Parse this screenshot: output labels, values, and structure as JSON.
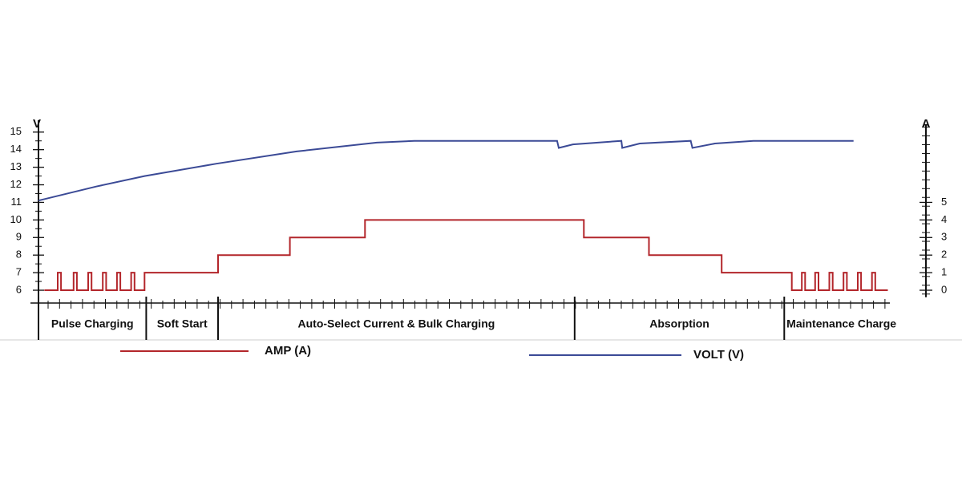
{
  "chart_data": {
    "type": "line",
    "ylabel": "V",
    "y2label": "A",
    "xlim": [
      -1,
      103
    ],
    "ylim": [
      5.6,
      15.4
    ],
    "yticks": [
      6,
      7,
      8,
      9,
      10,
      11,
      12,
      13,
      14,
      15
    ],
    "y2lim": [
      -0.4,
      9.4
    ],
    "y2ticks": [
      0,
      1,
      2,
      3,
      4,
      5
    ],
    "series": [
      {
        "name": "AMP (A)",
        "color": "#b3262b",
        "axis": "y2",
        "x": [
          0.7,
          2.3,
          2.3,
          2.7,
          2.7,
          4.2,
          4.2,
          4.6,
          4.6,
          5.95,
          5.95,
          6.35,
          6.35,
          7.7,
          7.7,
          8.1,
          8.1,
          9.4,
          9.4,
          9.8,
          9.8,
          11.1,
          11.1,
          11.5,
          11.5,
          12.7,
          12.7,
          21.5,
          21.5,
          30.1,
          30.1,
          39.1,
          39.1,
          65.3,
          65.3,
          73.1,
          73.1,
          81.8,
          81.8,
          90.2,
          90.2,
          91.4,
          91.4,
          91.8,
          91.8,
          93.0,
          93.0,
          93.4,
          93.4,
          94.7,
          94.7,
          95.1,
          95.1,
          96.4,
          96.4,
          96.8,
          96.8,
          98.1,
          98.1,
          98.5,
          98.5,
          99.8,
          99.8,
          100.2,
          100.2,
          101.7
        ],
        "values": [
          0,
          0,
          1,
          1,
          0,
          0,
          1,
          1,
          0,
          0,
          1,
          1,
          0,
          0,
          1,
          1,
          0,
          0,
          1,
          1,
          0,
          0,
          1,
          1,
          0,
          0,
          1,
          1,
          2,
          2,
          3,
          3,
          4,
          4,
          3,
          3,
          2,
          2,
          1,
          1,
          0,
          0,
          1,
          1,
          0,
          0,
          1,
          1,
          0,
          0,
          1,
          1,
          0,
          0,
          1,
          1,
          0,
          0,
          1,
          1,
          0,
          0,
          1,
          1,
          0,
          0
        ]
      },
      {
        "name": "VOLT (V)",
        "color": "#3b4a96",
        "x": [
          0,
          6.9,
          12.7,
          21.3,
          30.9,
          40.5,
          45,
          62.1,
          62.3,
          64,
          69.8,
          69.9,
          72,
          78.1,
          78.3,
          81,
          85.6,
          97.6
        ],
        "values": [
          11.1,
          11.9,
          12.5,
          13.2,
          13.9,
          14.4,
          14.5,
          14.5,
          14.1,
          14.3,
          14.5,
          14.1,
          14.35,
          14.5,
          14.1,
          14.35,
          14.5,
          14.5
        ]
      }
    ],
    "stages": [
      {
        "label": "Pulse Charging",
        "start": 0,
        "end": 12.9
      },
      {
        "label": "Soft Start",
        "start": 12.9,
        "end": 21.5
      },
      {
        "label": "Auto-Select Current & Bulk Charging",
        "start": 21.5,
        "end": 64.2
      },
      {
        "label": "Absorption",
        "start": 64.2,
        "end": 89.3
      },
      {
        "label": "Maintenance Charge",
        "start": 89.3,
        "end": 103
      }
    ]
  }
}
